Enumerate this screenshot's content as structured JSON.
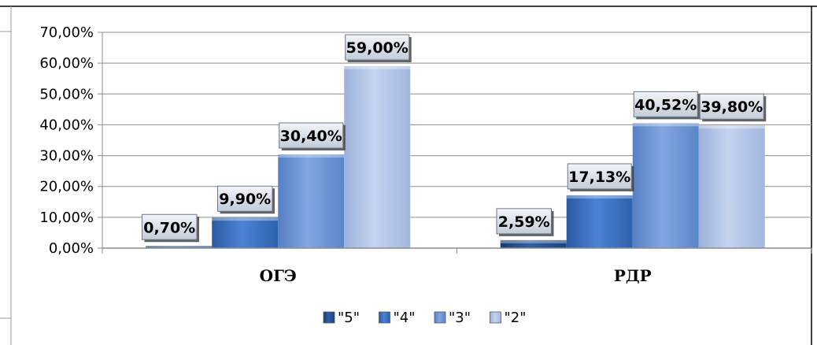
{
  "chart_data": {
    "type": "bar",
    "categories": [
      "ОГЭ",
      "РДР"
    ],
    "series": [
      {
        "name": "\"5\"",
        "values": [
          0.7,
          2.59
        ],
        "labels": [
          "0,70%",
          "2,59%"
        ],
        "color": "#1f4e8c"
      },
      {
        "name": "\"4\"",
        "values": [
          9.9,
          17.13
        ],
        "labels": [
          "9,90%",
          "17,13%"
        ],
        "color": "#3a6fc0"
      },
      {
        "name": "\"3\"",
        "values": [
          30.4,
          40.52
        ],
        "labels": [
          "30,40%",
          "40,52%"
        ],
        "color": "#6a92d4"
      },
      {
        "name": "\"2\"",
        "values": [
          59.0,
          39.8
        ],
        "labels": [
          "59,00%",
          "39,80%"
        ],
        "color": "#a9bfe6"
      }
    ],
    "ylim": [
      0,
      70
    ],
    "yticks": [
      0,
      10,
      20,
      30,
      40,
      50,
      60,
      70
    ],
    "ytick_labels": [
      "0,00%",
      "10,00%",
      "20,00%",
      "30,00%",
      "40,00%",
      "50,00%",
      "60,00%",
      "70,00%"
    ],
    "grid": true,
    "legend_position": "bottom"
  }
}
